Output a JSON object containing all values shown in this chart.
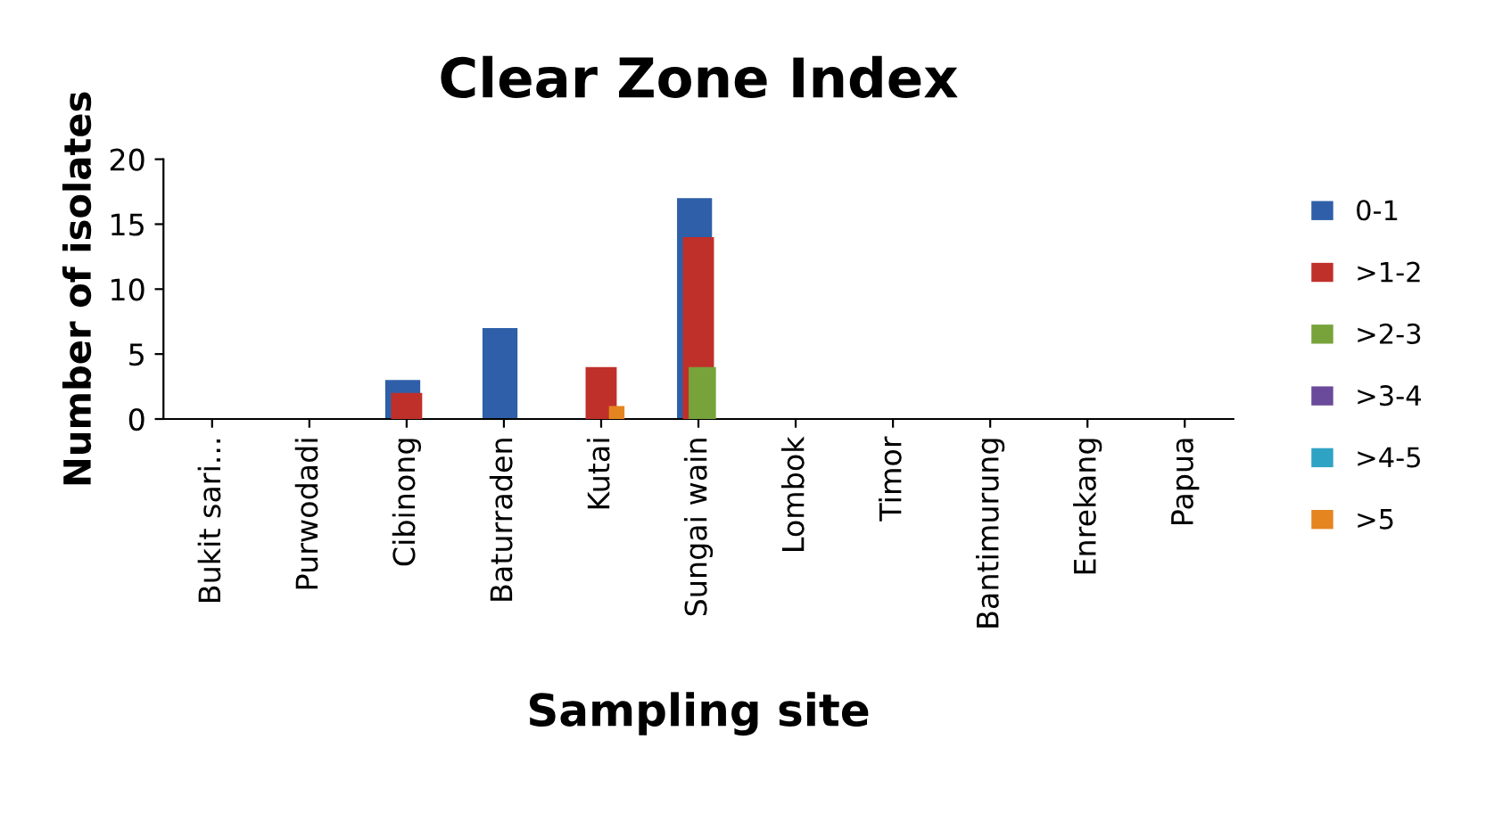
{
  "chart_data": {
    "type": "bar",
    "title": "Clear Zone Index",
    "xlabel": "Sampling site",
    "ylabel": "Number of isolates",
    "categories": [
      "Bukit sari...",
      "Purwodadi",
      "Cibinong",
      "Baturraden",
      "Kutai",
      "Sungai wain",
      "Lombok",
      "Timor",
      "Bantimurung",
      "Enrekang",
      "Papua"
    ],
    "series": [
      {
        "name": "0-1",
        "color": "#2e5fa8",
        "values": [
          0,
          0,
          3,
          7,
          0,
          17,
          0,
          0,
          0,
          0,
          0
        ]
      },
      {
        "name": ">1-2",
        "color": "#c0302b",
        "values": [
          0,
          0,
          2,
          0,
          4,
          14,
          0,
          0,
          0,
          0,
          0
        ]
      },
      {
        "name": ">2-3",
        "color": "#77a33a",
        "values": [
          0,
          0,
          0,
          0,
          0,
          4,
          0,
          0,
          0,
          0,
          0
        ]
      },
      {
        "name": ">3-4",
        "color": "#6a4a9a",
        "values": [
          0,
          0,
          0,
          0,
          0,
          0,
          0,
          0,
          0,
          0,
          0
        ]
      },
      {
        "name": ">4-5",
        "color": "#2ea3c4",
        "values": [
          0,
          0,
          0,
          0,
          0,
          0,
          0,
          0,
          0,
          0,
          0
        ]
      },
      {
        "name": ">5",
        "color": "#e5851f",
        "values": [
          0,
          0,
          0,
          0,
          1,
          0,
          0,
          0,
          0,
          0,
          0
        ]
      }
    ],
    "ylim": [
      0,
      20
    ],
    "yticks": [
      0,
      5,
      10,
      15,
      20
    ],
    "grid": false,
    "legend": "right"
  }
}
